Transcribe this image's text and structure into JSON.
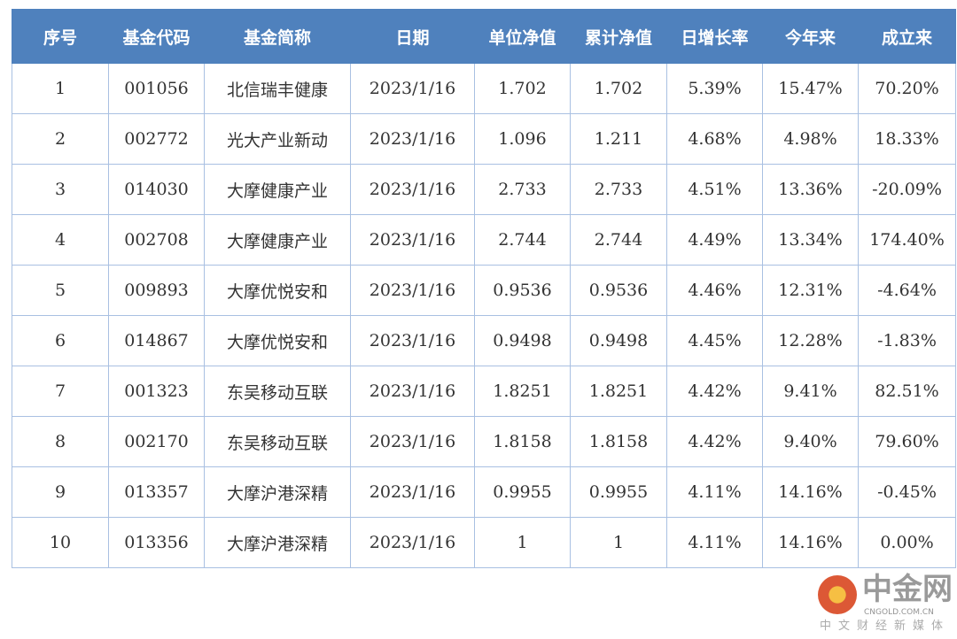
{
  "headers": [
    "序号",
    "基金代码",
    "基金简称",
    "日期",
    "单位净值",
    "累计净值",
    "日增长率",
    "今年来",
    "成立来"
  ],
  "rows": [
    [
      "1",
      "001056",
      "北信瑞丰健康",
      "2023/1/16",
      "1.702",
      "1.702",
      "5.39%",
      "15.47%",
      "70.20%"
    ],
    [
      "2",
      "002772",
      "光大产业新动",
      "2023/1/16",
      "1.096",
      "1.211",
      "4.68%",
      "4.98%",
      "18.33%"
    ],
    [
      "3",
      "014030",
      "大摩健康产业",
      "2023/1/16",
      "2.733",
      "2.733",
      "4.51%",
      "13.36%",
      "-20.09%"
    ],
    [
      "4",
      "002708",
      "大摩健康产业",
      "2023/1/16",
      "2.744",
      "2.744",
      "4.49%",
      "13.34%",
      "174.40%"
    ],
    [
      "5",
      "009893",
      "大摩优悦安和",
      "2023/1/16",
      "0.9536",
      "0.9536",
      "4.46%",
      "12.31%",
      "-4.64%"
    ],
    [
      "6",
      "014867",
      "大摩优悦安和",
      "2023/1/16",
      "0.9498",
      "0.9498",
      "4.45%",
      "12.28%",
      "-1.83%"
    ],
    [
      "7",
      "001323",
      "东吴移动互联",
      "2023/1/16",
      "1.8251",
      "1.8251",
      "4.42%",
      "9.41%",
      "82.51%"
    ],
    [
      "8",
      "002170",
      "东吴移动互联",
      "2023/1/16",
      "1.8158",
      "1.8158",
      "4.42%",
      "9.40%",
      "79.60%"
    ],
    [
      "9",
      "013357",
      "大摩沪港深精",
      "2023/1/16",
      "0.9955",
      "0.9955",
      "4.11%",
      "14.16%",
      "-0.45%"
    ],
    [
      "10",
      "013356",
      "大摩沪港深精",
      "2023/1/16",
      "1",
      "1",
      "4.11%",
      "14.16%",
      "0.00%"
    ]
  ],
  "watermark": {
    "name": "中金网",
    "domain": "CNGOLD.COM.CN",
    "tagline": "中文财经新媒体"
  },
  "colors": {
    "header_bg": "#4f81bd",
    "border": "#a9c0e2"
  }
}
